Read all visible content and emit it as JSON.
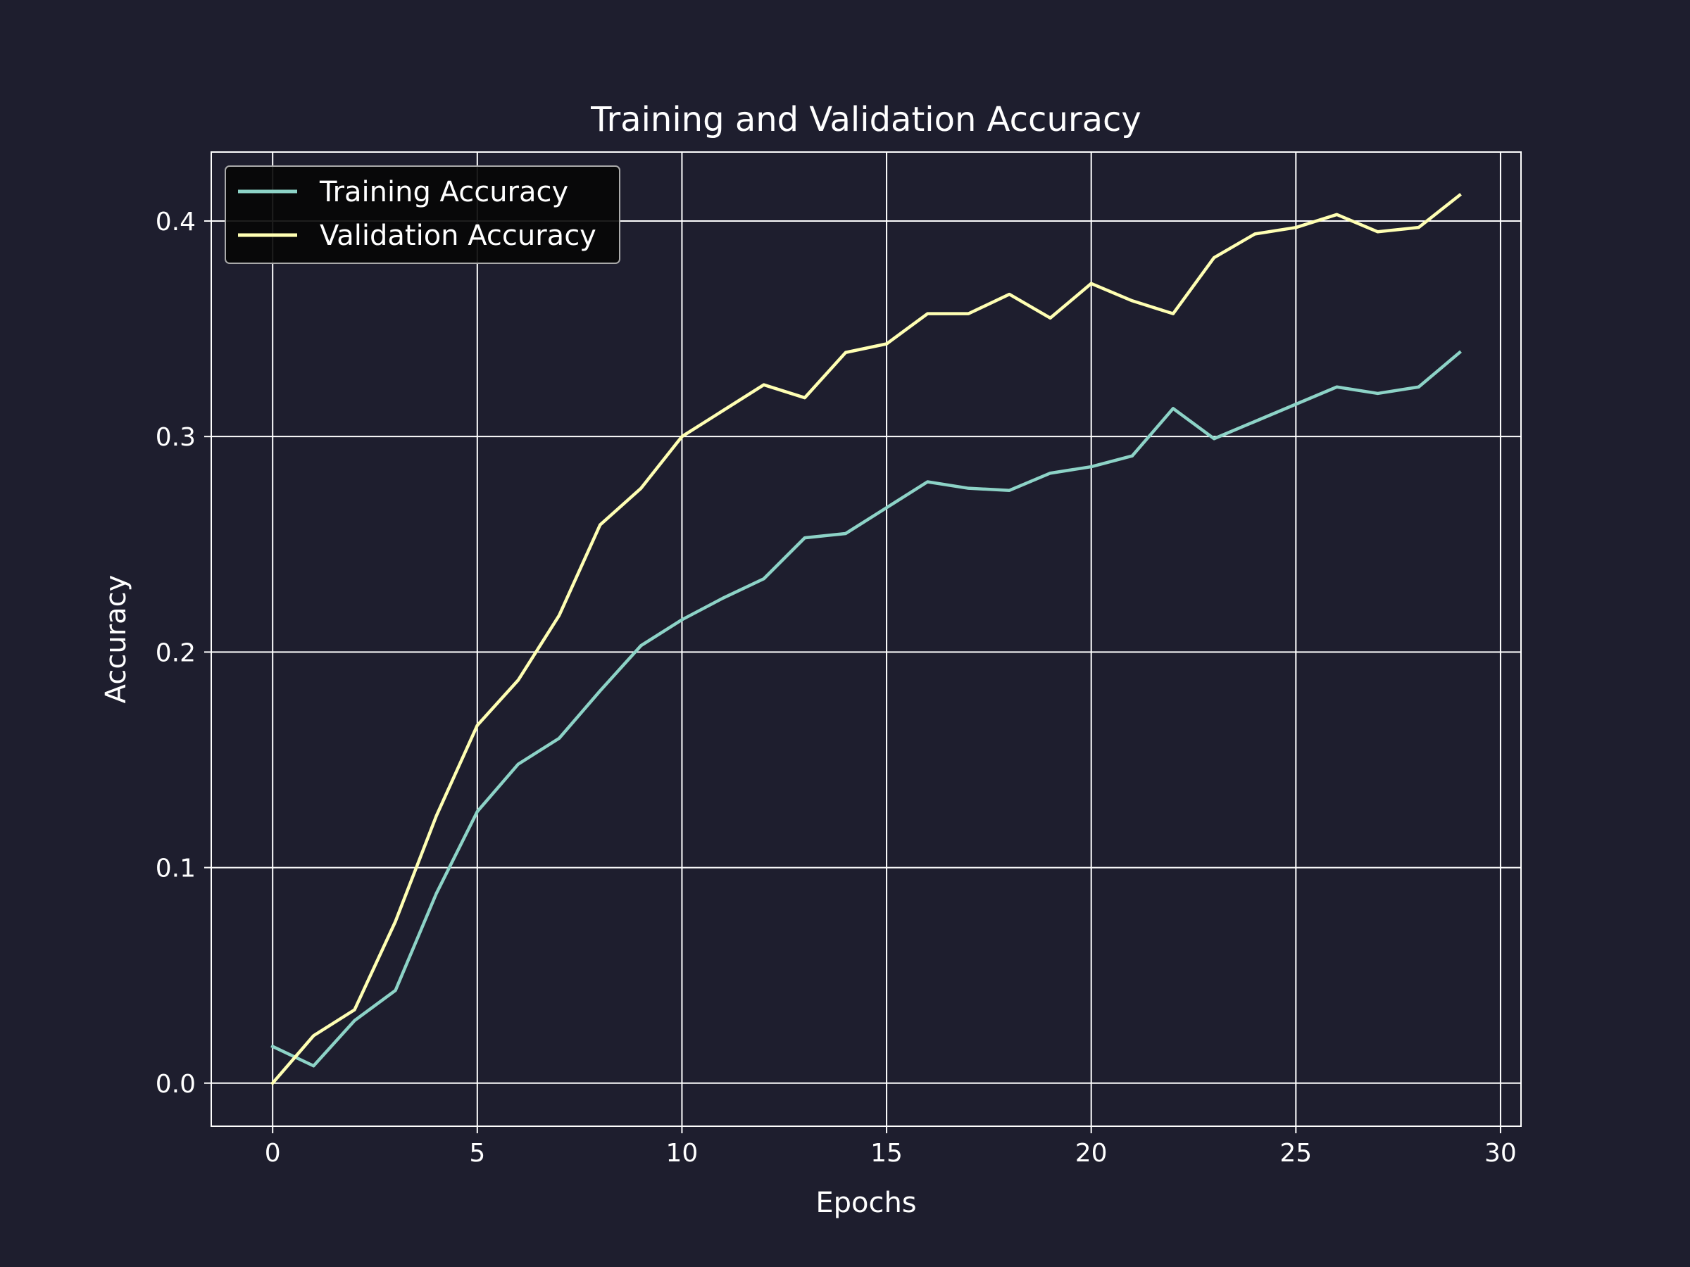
{
  "colors": {
    "background": "#1e1e2e",
    "axes": "#ffffff",
    "grid": "#ffffff",
    "text": "#ffffff",
    "legend_background": "#050505"
  },
  "chart_data": {
    "type": "line",
    "title": "Training and Validation Accuracy",
    "xlabel": "Epochs",
    "ylabel": "Accuracy",
    "xlim": [
      -1.5,
      30.5
    ],
    "ylim": [
      -0.02,
      0.432
    ],
    "xticks": [
      0,
      5,
      10,
      15,
      20,
      25,
      30
    ],
    "xtick_labels": [
      "0",
      "5",
      "10",
      "15",
      "20",
      "25",
      "30"
    ],
    "yticks": [
      0.0,
      0.1,
      0.2,
      0.3,
      0.4
    ],
    "ytick_labels": [
      "0.0",
      "0.1",
      "0.2",
      "0.3",
      "0.4"
    ],
    "grid": true,
    "legend": "top-left",
    "x": [
      0,
      1,
      2,
      3,
      4,
      5,
      6,
      7,
      8,
      9,
      10,
      11,
      12,
      13,
      14,
      15,
      16,
      17,
      18,
      19,
      20,
      21,
      22,
      23,
      24,
      25,
      26,
      27,
      28,
      29
    ],
    "series": [
      {
        "name": "Training Accuracy",
        "color": "#8dd3c7",
        "values": [
          0.017,
          0.008,
          0.029,
          0.043,
          0.088,
          0.126,
          0.148,
          0.16,
          0.182,
          0.203,
          0.215,
          0.225,
          0.234,
          0.253,
          0.255,
          0.267,
          0.279,
          0.276,
          0.275,
          0.283,
          0.286,
          0.291,
          0.313,
          0.299,
          0.307,
          0.315,
          0.323,
          0.32,
          0.323,
          0.339
        ]
      },
      {
        "name": "Validation Accuracy",
        "color": "#ffffb3",
        "values": [
          0.0,
          0.022,
          0.034,
          0.075,
          0.124,
          0.166,
          0.187,
          0.217,
          0.259,
          0.276,
          0.3,
          0.312,
          0.324,
          0.318,
          0.339,
          0.343,
          0.357,
          0.357,
          0.366,
          0.355,
          0.371,
          0.363,
          0.357,
          0.383,
          0.394,
          0.397,
          0.403,
          0.395,
          0.397,
          0.412
        ]
      }
    ]
  }
}
